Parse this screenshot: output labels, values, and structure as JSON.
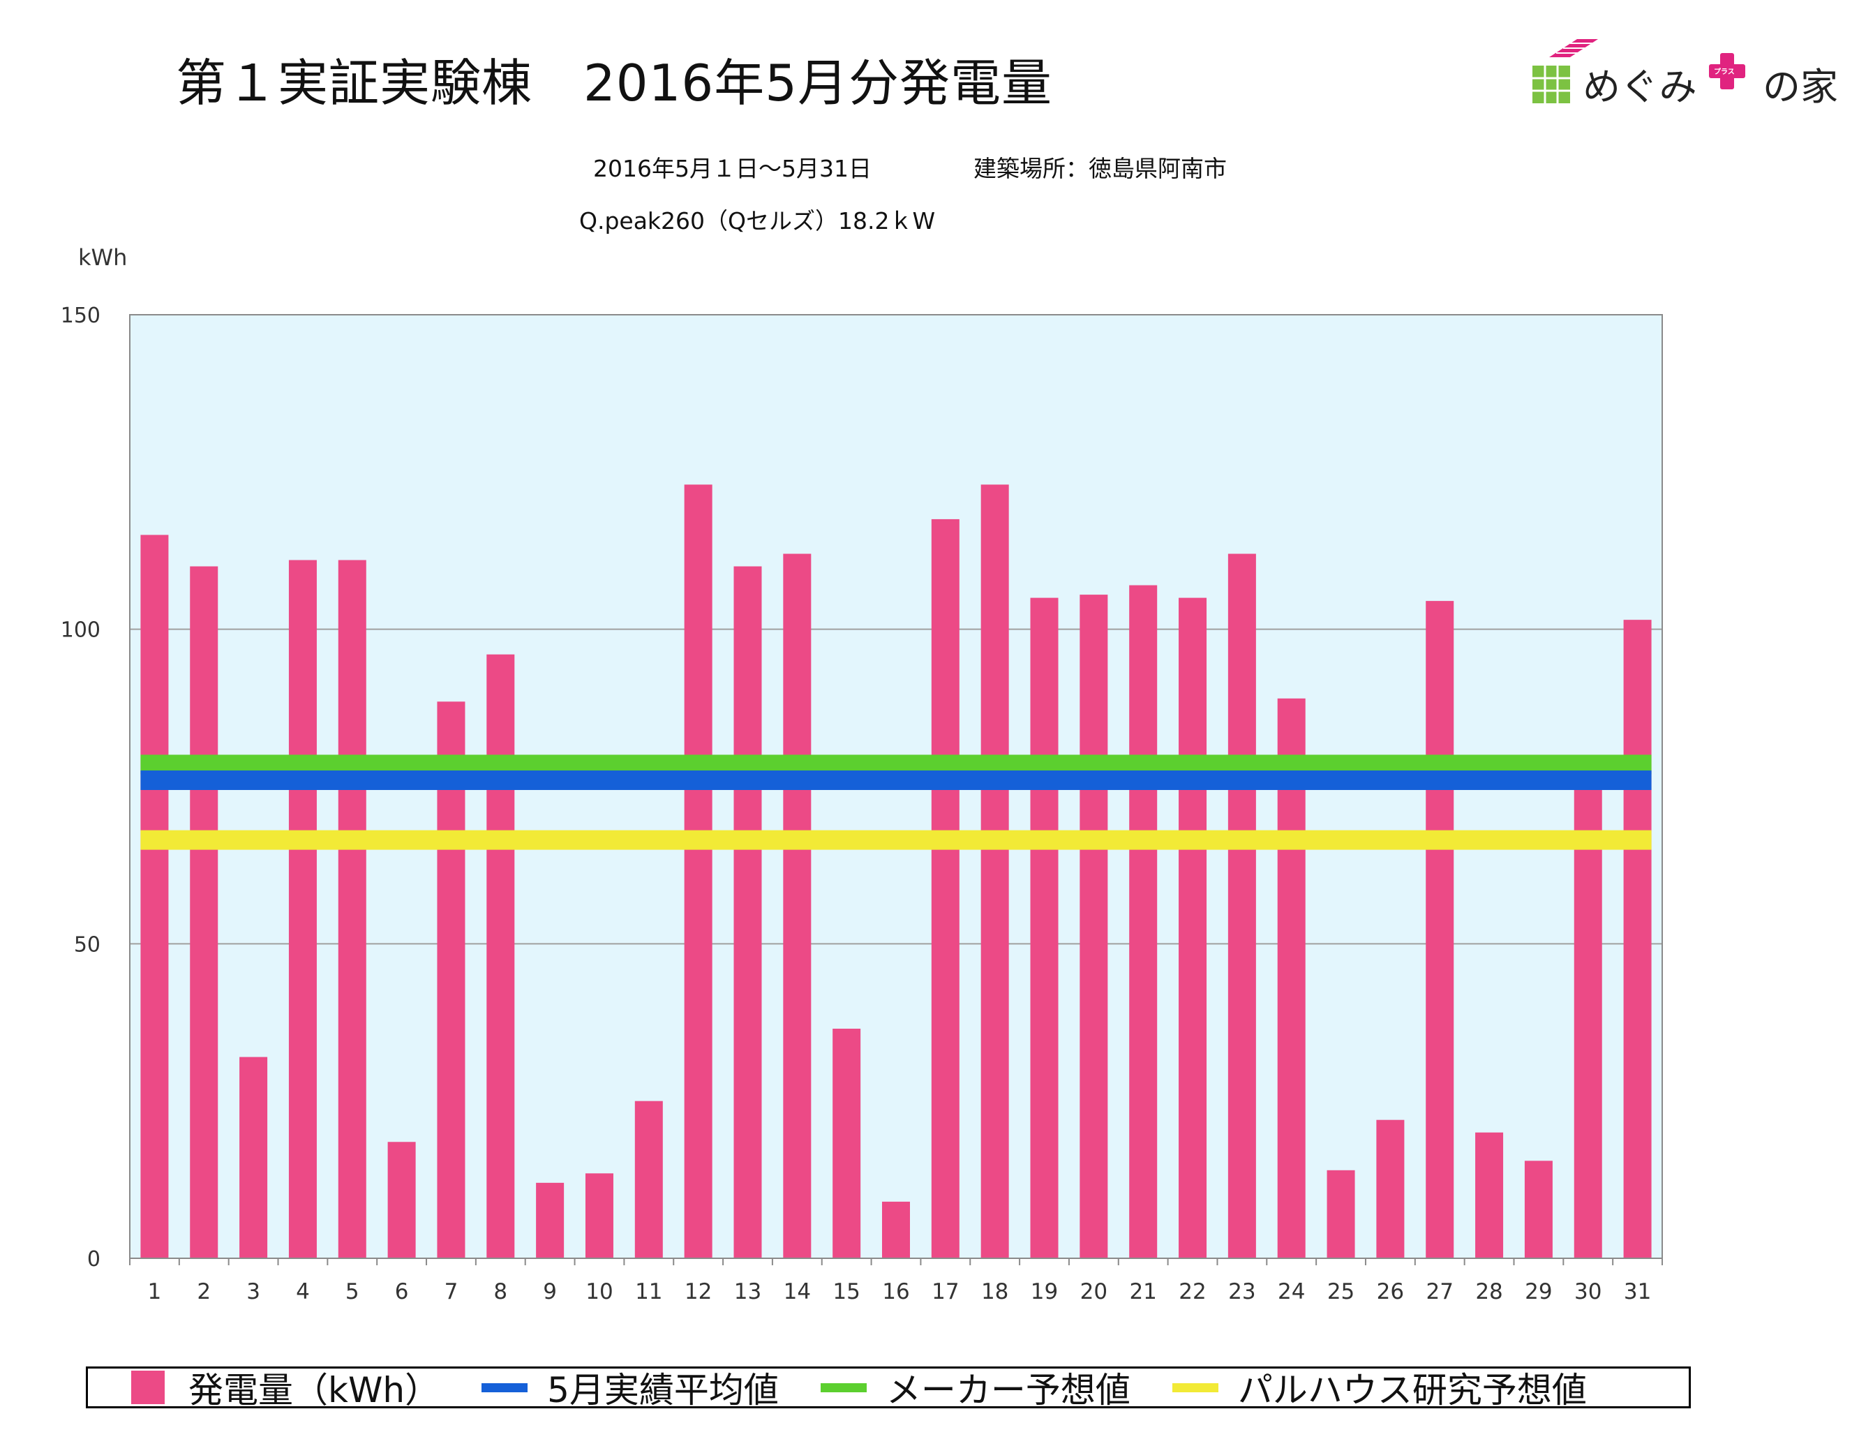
{
  "header": {
    "title": "第１実証実験棟　2016年5月分発電量",
    "period": "2016年5月１日〜5月31日",
    "location": "建築場所：徳島県阿南市",
    "system": "Q.peak260（Qセルズ）18.2ｋW"
  },
  "logo": {
    "text_left": "めぐみ",
    "text_right": "の家",
    "plus_text": "プラス",
    "brand_color": "#e0237f",
    "leaf_color": "#7cc242"
  },
  "chart_data": {
    "type": "bar",
    "unit_label": "kWh",
    "ylim": [
      0,
      150
    ],
    "yticks": [
      0,
      50,
      100,
      150
    ],
    "grid": true,
    "legend_position": "bottom",
    "background_color": "#e3f6fd",
    "categories": [
      "1",
      "2",
      "3",
      "4",
      "5",
      "6",
      "7",
      "8",
      "9",
      "10",
      "11",
      "12",
      "13",
      "14",
      "15",
      "16",
      "17",
      "18",
      "19",
      "20",
      "21",
      "22",
      "23",
      "24",
      "25",
      "26",
      "27",
      "28",
      "29",
      "30",
      "31"
    ],
    "series": [
      {
        "name": "発電量（kWh）",
        "color": "#ec4a86",
        "values": [
          115,
          110,
          32,
          111,
          111,
          18.5,
          88.5,
          96,
          12,
          13.5,
          25,
          123,
          110,
          112,
          36.5,
          9,
          117.5,
          123,
          105,
          105.5,
          107,
          105,
          112,
          89,
          14,
          22,
          104.5,
          20,
          15.5,
          75,
          101.5
        ]
      }
    ],
    "reference_lines": [
      {
        "name": "5月実績平均値",
        "color": "#1560d8",
        "value": 76
      },
      {
        "name": "メーカー予想値",
        "color": "#5ccf2f",
        "value": 78.5
      },
      {
        "name": "パルハウス研究予想値",
        "color": "#f2ea36",
        "value": 66.5
      }
    ]
  }
}
